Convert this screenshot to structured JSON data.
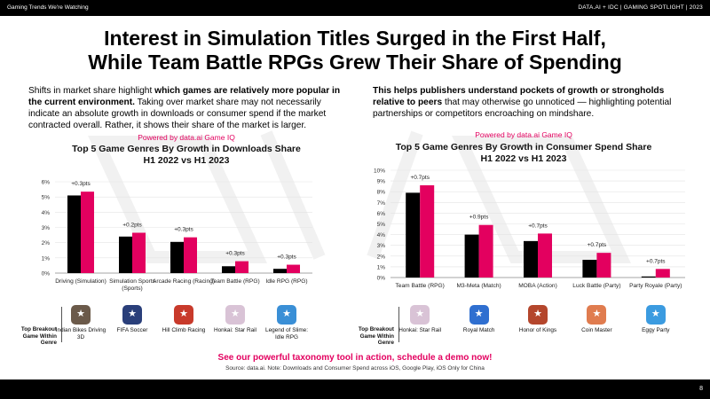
{
  "header": {
    "left": "Gaming Trends We're Watching",
    "right": "DATA.AI + IDC  |  GAMING SPOTLIGHT  |  2023"
  },
  "title_line1": "Interest in Simulation Titles Surged in the First Half,",
  "title_line2": "While Team Battle RPGs Grew Their Share of Spending",
  "left_para": {
    "p1": "Shifts in market share highlight ",
    "b1": "which games are relatively more popular in the current environment.",
    "p2": " Taking over market share may not necessarily indicate an absolute growth in downloads or consumer spend if the market contracted overall. Rather, it shows their share of the market is larger."
  },
  "right_para": {
    "b1": "This helps publishers understand pockets of growth or strongholds relative to peers",
    "p1": " that may otherwise go unnoticed — highlighting potential partnerships or competitors encroaching on mindshare."
  },
  "powered_by": "Powered by data.ai Game IQ",
  "breakout_label": "Top Breakout Game Within Genre",
  "colors": {
    "h1_2022": "#000000",
    "h1_2023": "#e3005f",
    "accent": "#e3005f"
  },
  "chart_data": [
    {
      "type": "bar",
      "title": "Top 5 Game Genres By Growth in Downloads Share",
      "subtitle": "H1 2022 vs H1 2023",
      "categories": [
        "Driving (Simulation)",
        "Simulation Sports (Sports)",
        "Arcade Racing (Racing)",
        "Team Battle (RPG)",
        "Idle RPG (RPG)"
      ],
      "series": [
        {
          "values": [
            5.1,
            2.4,
            2.05,
            0.45,
            0.28
          ]
        },
        {
          "values": [
            5.35,
            2.65,
            2.35,
            0.78,
            0.55
          ]
        }
      ],
      "labels": [
        "+0.3pts",
        "+0.2pts",
        "+0.3pts",
        "+0.3pts",
        "+0.3pts"
      ],
      "yticks": [
        "0%",
        "1%",
        "2%",
        "3%",
        "4%",
        "5%",
        "6%"
      ],
      "ylim": [
        0,
        6
      ],
      "games": [
        {
          "name": "Indian Bikes Driving 3D",
          "icon": "motorbike-icon",
          "color": "#6b5a4a"
        },
        {
          "name": "FIFA Soccer",
          "icon": "soccer-icon",
          "color": "#2a3f7a"
        },
        {
          "name": "Hill Climb Racing",
          "icon": "car-icon",
          "color": "#c83a2b"
        },
        {
          "name": "Honkai: Star Rail",
          "icon": "character-icon",
          "color": "#d9c3d6"
        },
        {
          "name": "Legend of Slime: Idle RPG",
          "icon": "slime-icon",
          "color": "#3a8fd6"
        }
      ]
    },
    {
      "type": "bar",
      "title": "Top 5 Game Genres By Growth in Consumer Spend Share",
      "subtitle": "H1 2022 vs H1 2023",
      "categories": [
        "Team Battle (RPG)",
        "M3-Meta (Match)",
        "MOBA (Action)",
        "Luck Battle (Party)",
        "Party Royale (Party)"
      ],
      "series": [
        {
          "values": [
            7.9,
            4.0,
            3.4,
            1.65,
            0.1
          ]
        },
        {
          "values": [
            8.6,
            4.9,
            4.1,
            2.3,
            0.8
          ]
        }
      ],
      "labels": [
        "+0.7pts",
        "+0.9pts",
        "+0.7pts",
        "+0.7pts",
        "+0.7pts"
      ],
      "yticks": [
        "0%",
        "1%",
        "2%",
        "3%",
        "4%",
        "5%",
        "6%",
        "7%",
        "8%",
        "9%",
        "10%"
      ],
      "ylim": [
        0,
        10
      ],
      "games": [
        {
          "name": "Honkai: Star Rail",
          "icon": "character-icon",
          "color": "#d9c3d6"
        },
        {
          "name": "Royal Match",
          "icon": "king-icon",
          "color": "#2f6fd0"
        },
        {
          "name": "Honor of Kings",
          "icon": "warrior-icon",
          "color": "#b4462c"
        },
        {
          "name": "Coin Master",
          "icon": "pig-icon",
          "color": "#e07c4f"
        },
        {
          "name": "Eggy Party",
          "icon": "egg-icon",
          "color": "#3b9be0"
        }
      ]
    }
  ],
  "cta": "See our powerful taxonomy tool in action, schedule a demo now!",
  "source": "Source: data.ai. Note: Downloads and Consumer Spend across iOS, Google Play, iOS Only for China",
  "page_number": "8"
}
